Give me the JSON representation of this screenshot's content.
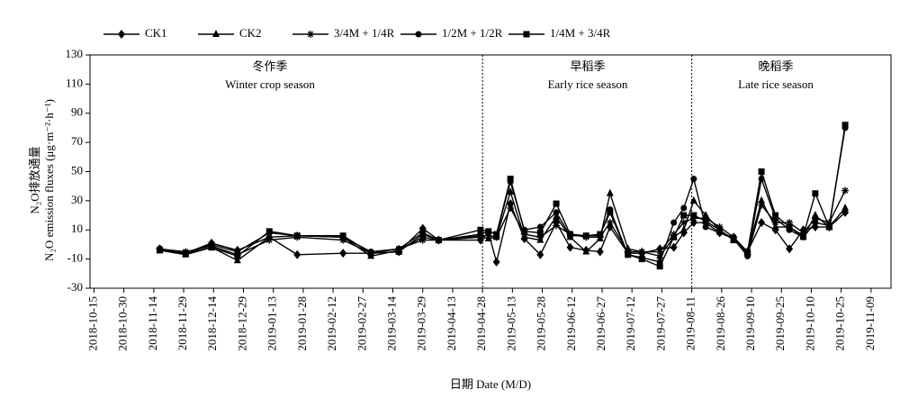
{
  "chart_data": {
    "type": "line",
    "y_label_cn": "N₂O排放通量",
    "y_label": "N₂O emission fluxes (μg·m⁻²·h⁻¹)",
    "x_label": "日期 Date (M/D)",
    "annotations": [
      {
        "cn": "冬作季",
        "en": "Winter crop season"
      },
      {
        "cn": "早稻季",
        "en": "Early rice season"
      },
      {
        "cn": "晚稻季",
        "en": "Late rice season"
      }
    ],
    "dividers": [
      "2019-04-28",
      "2019-08-11"
    ],
    "xlim": [
      "2018-10-13",
      "2019-11-19"
    ],
    "ylim": [
      -30,
      130
    ],
    "yticks": [
      -30,
      -10,
      10,
      30,
      50,
      70,
      90,
      110,
      130
    ],
    "xticks": [
      "2018-10-15",
      "2018-10-30",
      "2018-11-14",
      "2018-11-29",
      "2018-12-14",
      "2018-12-29",
      "2019-01-13",
      "2019-01-28",
      "2019-02-12",
      "2019-02-27",
      "2019-03-14",
      "2019-03-29",
      "2019-04-13",
      "2019-04-28",
      "2019-05-13",
      "2019-05-28",
      "2019-06-12",
      "2019-06-27",
      "2019-07-12",
      "2019-07-27",
      "2019-08-11",
      "2019-08-26",
      "2019-09-10",
      "2019-09-25",
      "2019-10-10",
      "2019-10-25",
      "2019-11-09"
    ],
    "x": [
      "2018-11-17",
      "2018-11-30",
      "2018-12-13",
      "2018-12-26",
      "2019-01-11",
      "2019-01-25",
      "2019-02-17",
      "2019-03-03",
      "2019-03-17",
      "2019-03-29",
      "2019-04-06",
      "2019-04-27",
      "2019-05-01",
      "2019-05-05",
      "2019-05-12",
      "2019-05-19",
      "2019-05-27",
      "2019-06-04",
      "2019-06-11",
      "2019-06-19",
      "2019-06-26",
      "2019-07-01",
      "2019-07-10",
      "2019-07-17",
      "2019-07-26",
      "2019-08-02",
      "2019-08-07",
      "2019-08-12",
      "2019-08-18",
      "2019-08-25",
      "2019-09-01",
      "2019-09-08",
      "2019-09-15",
      "2019-09-22",
      "2019-09-29",
      "2019-10-06",
      "2019-10-12",
      "2019-10-19",
      "2019-10-27"
    ],
    "series": [
      {
        "name": "CK1",
        "color": "#000000",
        "marker": "diamond",
        "values": [
          -3,
          -6,
          1,
          -4,
          5,
          -7,
          -6,
          -6,
          -5,
          11,
          3,
          3,
          8,
          -12,
          28,
          4,
          -7,
          15,
          -2,
          -4,
          -5,
          12,
          -6,
          -6,
          -3,
          -2,
          8,
          15,
          15,
          8,
          5,
          -5,
          15,
          10,
          -3,
          10,
          12,
          12,
          22
        ]
      },
      {
        "name": "CK2",
        "color": "#000000",
        "marker": "triangle",
        "values": [
          -4,
          -7,
          -2,
          -11,
          5,
          6,
          5,
          -8,
          -4,
          5,
          3,
          5,
          4,
          5,
          36,
          5,
          3,
          19,
          5,
          -5,
          4,
          35,
          -3,
          -5,
          -8,
          5,
          10,
          30,
          20,
          10,
          3,
          -5,
          30,
          12,
          12,
          5,
          20,
          12,
          25
        ]
      },
      {
        "name": "3/4M + 1/4R",
        "color": "#000000",
        "marker": "star",
        "values": [
          -3,
          -5,
          -1,
          -7,
          3,
          5,
          3,
          -6,
          -3,
          3,
          3,
          6,
          6,
          5,
          25,
          7,
          5,
          13,
          7,
          5,
          5,
          15,
          -5,
          -5,
          -5,
          7,
          15,
          18,
          18,
          12,
          5,
          -7,
          27,
          15,
          15,
          8,
          18,
          15,
          37
        ]
      },
      {
        "name": "1/2M + 1/2R",
        "color": "#000000",
        "marker": "circle",
        "values": [
          -4,
          -6,
          0,
          -5,
          8,
          6,
          5,
          -5,
          -3,
          8,
          3,
          7,
          9,
          7,
          43,
          10,
          12,
          22,
          6,
          6,
          6,
          24,
          -7,
          -9,
          -12,
          15,
          25,
          45,
          12,
          8,
          4,
          -8,
          45,
          18,
          10,
          5,
          15,
          13,
          80
        ]
      },
      {
        "name": "1/4M + 3/4R",
        "color": "#000000",
        "marker": "square",
        "values": [
          -4,
          -6,
          -2,
          -8,
          9,
          6,
          6,
          -6,
          -5,
          7,
          3,
          10,
          9,
          7,
          45,
          9,
          8,
          28,
          7,
          6,
          7,
          22,
          -7,
          -10,
          -15,
          5,
          20,
          20,
          16,
          10,
          3,
          -5,
          50,
          20,
          12,
          6,
          35,
          12,
          82
        ]
      }
    ]
  }
}
